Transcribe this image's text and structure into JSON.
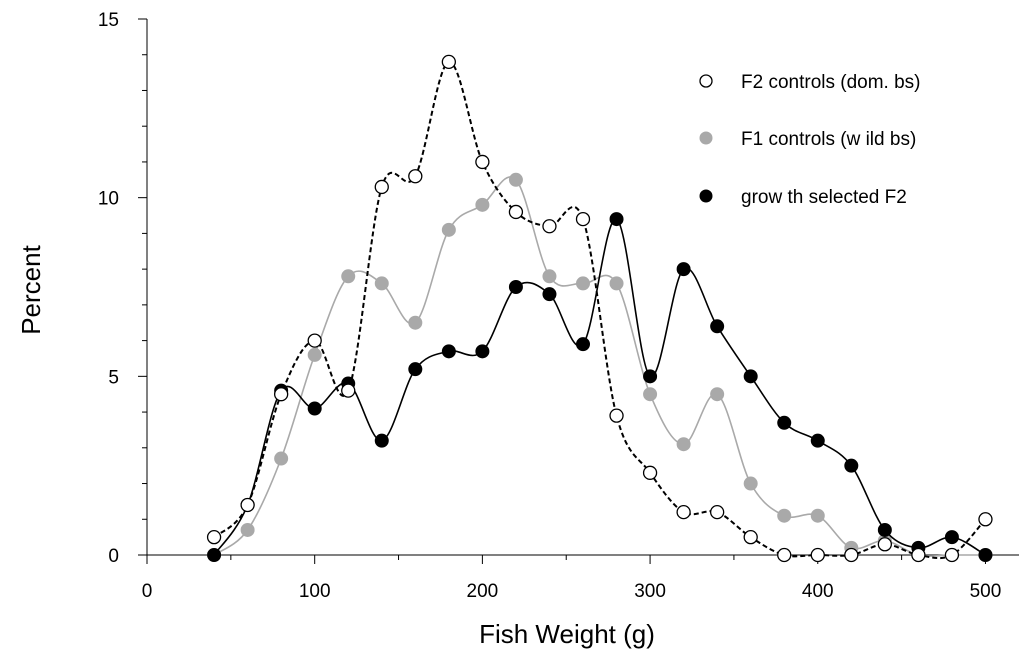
{
  "chart_data": {
    "type": "line",
    "xlabel": "Fish Weight (g)",
    "ylabel": "Percent",
    "xlim": [
      0,
      520
    ],
    "ylim": [
      0,
      15
    ],
    "x_ticks": [
      0,
      100,
      200,
      300,
      400,
      500
    ],
    "y_ticks": [
      0,
      5,
      10,
      15
    ],
    "legend_position": "top-right",
    "x": [
      40,
      60,
      80,
      100,
      120,
      140,
      160,
      180,
      200,
      220,
      240,
      260,
      280,
      300,
      320,
      340,
      360,
      380,
      400,
      420,
      440,
      460,
      480,
      500
    ],
    "series": [
      {
        "name": "F2 controls (dom. bs)",
        "marker": "open-circle",
        "line": "dashed",
        "color": "#000000",
        "values": [
          0.5,
          1.4,
          4.5,
          6.0,
          4.6,
          10.3,
          10.6,
          13.8,
          11.0,
          9.6,
          9.2,
          9.4,
          3.9,
          2.3,
          1.2,
          1.2,
          0.5,
          0.0,
          0.0,
          0.0,
          0.3,
          0.0,
          0.0,
          1.0
        ]
      },
      {
        "name": "F1 controls (w ild bs)",
        "marker": "grey-circle",
        "line": "solid",
        "color": "#a9a9a9",
        "values": [
          0.0,
          0.7,
          2.7,
          5.6,
          7.8,
          7.6,
          6.5,
          9.1,
          9.8,
          10.5,
          7.8,
          7.6,
          7.6,
          4.5,
          3.1,
          4.5,
          2.0,
          1.1,
          1.1,
          0.2,
          0.4,
          0.0,
          0.0,
          0.0
        ]
      },
      {
        "name": "grow th selected F2",
        "marker": "filled-circle",
        "line": "solid",
        "color": "#000000",
        "values": [
          0.0,
          1.4,
          4.6,
          4.1,
          4.8,
          3.2,
          5.2,
          5.7,
          5.7,
          7.5,
          7.3,
          5.9,
          9.4,
          5.0,
          8.0,
          6.4,
          5.0,
          3.7,
          3.2,
          2.5,
          0.7,
          0.2,
          0.5,
          0.0
        ]
      }
    ]
  }
}
